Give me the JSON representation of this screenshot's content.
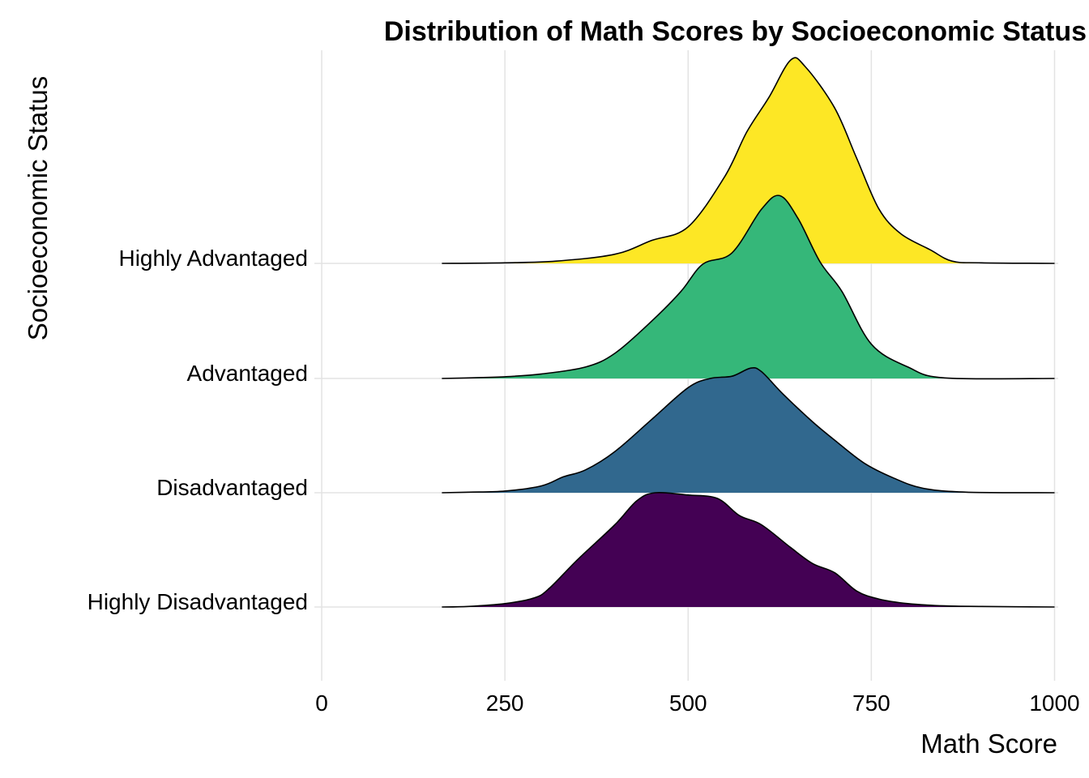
{
  "chart_data": {
    "type": "ridgeline",
    "title": "Distribution of Math Scores by Socioeconomic Status",
    "xlabel": "Math Score",
    "ylabel": "Socioeconomic Status",
    "xlim": [
      -10,
      1005
    ],
    "x_ticks": [
      0,
      250,
      500,
      750,
      1000
    ],
    "grid": true,
    "legend": "none",
    "categories": [
      "Highly Disadvantaged",
      "Disadvantaged",
      "Advantaged",
      "Highly Advantaged"
    ],
    "series": [
      {
        "name": "Highly Disadvantaged",
        "color": "#440154",
        "density": [
          [
            164,
            0
          ],
          [
            200,
            0.005
          ],
          [
            250,
            0.03
          ],
          [
            290,
            0.08
          ],
          [
            310,
            0.16
          ],
          [
            350,
            0.42
          ],
          [
            400,
            0.72
          ],
          [
            430,
            0.93
          ],
          [
            455,
            1.0
          ],
          [
            500,
            0.98
          ],
          [
            540,
            0.95
          ],
          [
            570,
            0.8
          ],
          [
            600,
            0.72
          ],
          [
            640,
            0.52
          ],
          [
            670,
            0.38
          ],
          [
            700,
            0.3
          ],
          [
            730,
            0.14
          ],
          [
            760,
            0.07
          ],
          [
            800,
            0.03
          ],
          [
            850,
            0.01
          ],
          [
            900,
            0.005
          ],
          [
            1000,
            0
          ]
        ]
      },
      {
        "name": "Disadvantaged",
        "color": "#31688e",
        "density": [
          [
            164,
            0
          ],
          [
            200,
            0.005
          ],
          [
            250,
            0.015
          ],
          [
            300,
            0.06
          ],
          [
            330,
            0.14
          ],
          [
            360,
            0.2
          ],
          [
            400,
            0.36
          ],
          [
            450,
            0.64
          ],
          [
            500,
            0.92
          ],
          [
            530,
            1.0
          ],
          [
            560,
            1.02
          ],
          [
            585,
            1.09
          ],
          [
            600,
            1.06
          ],
          [
            630,
            0.86
          ],
          [
            670,
            0.62
          ],
          [
            700,
            0.46
          ],
          [
            740,
            0.26
          ],
          [
            780,
            0.13
          ],
          [
            820,
            0.04
          ],
          [
            880,
            0.005
          ],
          [
            1000,
            0
          ]
        ]
      },
      {
        "name": "Advantaged",
        "color": "#35b779",
        "density": [
          [
            164,
            0
          ],
          [
            200,
            0.005
          ],
          [
            250,
            0.015
          ],
          [
            300,
            0.04
          ],
          [
            360,
            0.1
          ],
          [
            400,
            0.22
          ],
          [
            450,
            0.5
          ],
          [
            490,
            0.76
          ],
          [
            520,
            1.0
          ],
          [
            560,
            1.1
          ],
          [
            600,
            1.48
          ],
          [
            625,
            1.6
          ],
          [
            650,
            1.4
          ],
          [
            680,
            1.02
          ],
          [
            710,
            0.76
          ],
          [
            750,
            0.3
          ],
          [
            800,
            0.1
          ],
          [
            850,
            0.005
          ],
          [
            1000,
            0
          ]
        ]
      },
      {
        "name": "Highly Advantaged",
        "color": "#fde725",
        "density": [
          [
            164,
            0
          ],
          [
            250,
            0.005
          ],
          [
            320,
            0.02
          ],
          [
            400,
            0.08
          ],
          [
            450,
            0.2
          ],
          [
            500,
            0.32
          ],
          [
            550,
            0.76
          ],
          [
            580,
            1.15
          ],
          [
            610,
            1.45
          ],
          [
            640,
            1.78
          ],
          [
            660,
            1.72
          ],
          [
            700,
            1.36
          ],
          [
            730,
            0.92
          ],
          [
            760,
            0.48
          ],
          [
            790,
            0.26
          ],
          [
            830,
            0.12
          ],
          [
            860,
            0.02
          ],
          [
            900,
            0.005
          ],
          [
            1000,
            0
          ]
        ]
      }
    ]
  }
}
